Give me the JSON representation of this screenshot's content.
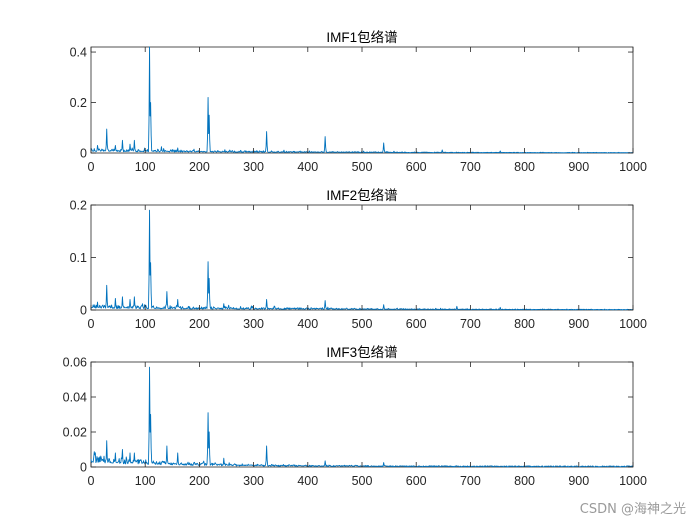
{
  "figure": {
    "watermark": "CSDN @海神之光"
  },
  "style": {
    "line_color": "#0072BD"
  },
  "chart_data": [
    {
      "type": "line",
      "title": "IMF1包络谱",
      "xlabel": "",
      "ylabel": "",
      "xlim": [
        0,
        1000
      ],
      "ylim": [
        0,
        0.42
      ],
      "xticks": [
        0,
        100,
        200,
        300,
        400,
        500,
        600,
        700,
        800,
        900,
        1000
      ],
      "yticks": [
        0,
        0.2,
        0.4
      ],
      "ytick_labels": [
        "0",
        "0.2",
        "0.4"
      ],
      "grid": false,
      "baseline": 0.006,
      "noise": 0.012,
      "decay": 330,
      "peaks": [
        [
          29,
          0.095
        ],
        [
          12,
          0.03
        ],
        [
          45,
          0.03
        ],
        [
          58,
          0.05
        ],
        [
          72,
          0.035
        ],
        [
          80,
          0.05
        ],
        [
          108,
          0.42
        ],
        [
          110,
          0.2
        ],
        [
          130,
          0.025
        ],
        [
          160,
          0.02
        ],
        [
          190,
          0.015
        ],
        [
          216,
          0.22
        ],
        [
          218,
          0.15
        ],
        [
          324,
          0.085
        ],
        [
          432,
          0.065
        ],
        [
          540,
          0.04
        ],
        [
          648,
          0.012
        ],
        [
          755,
          0.008
        ]
      ]
    },
    {
      "type": "line",
      "title": "IMF2包络谱",
      "xlabel": "",
      "ylabel": "",
      "xlim": [
        0,
        1000
      ],
      "ylim": [
        0,
        0.2
      ],
      "xticks": [
        0,
        100,
        200,
        300,
        400,
        500,
        600,
        700,
        800,
        900,
        1000
      ],
      "yticks": [
        0,
        0.1,
        0.2
      ],
      "ytick_labels": [
        "0",
        "0.1",
        "0.2"
      ],
      "grid": false,
      "baseline": 0.003,
      "noise": 0.007,
      "decay": 380,
      "peaks": [
        [
          12,
          0.015
        ],
        [
          29,
          0.047
        ],
        [
          45,
          0.022
        ],
        [
          58,
          0.025
        ],
        [
          72,
          0.02
        ],
        [
          80,
          0.025
        ],
        [
          108,
          0.19
        ],
        [
          110,
          0.09
        ],
        [
          140,
          0.035
        ],
        [
          160,
          0.02
        ],
        [
          216,
          0.092
        ],
        [
          218,
          0.06
        ],
        [
          245,
          0.012
        ],
        [
          324,
          0.02
        ],
        [
          432,
          0.018
        ],
        [
          540,
          0.01
        ],
        [
          675,
          0.007
        ],
        [
          755,
          0.005
        ]
      ]
    },
    {
      "type": "line",
      "title": "IMF3包络谱",
      "xlabel": "",
      "ylabel": "",
      "xlim": [
        0,
        1000
      ],
      "ylim": [
        0,
        0.06
      ],
      "xticks": [
        0,
        100,
        200,
        300,
        400,
        500,
        600,
        700,
        800,
        900,
        1000
      ],
      "yticks": [
        0,
        0.02,
        0.04,
        0.06
      ],
      "ytick_labels": [
        "0",
        "0.02",
        "0.04",
        "0.06"
      ],
      "grid": false,
      "baseline": 0.0025,
      "noise": 0.0045,
      "decay": 170,
      "peaks": [
        [
          29,
          0.015
        ],
        [
          45,
          0.008
        ],
        [
          58,
          0.01
        ],
        [
          72,
          0.008
        ],
        [
          80,
          0.008
        ],
        [
          108,
          0.057
        ],
        [
          110,
          0.03
        ],
        [
          140,
          0.012
        ],
        [
          160,
          0.008
        ],
        [
          216,
          0.031
        ],
        [
          218,
          0.02
        ],
        [
          245,
          0.005
        ],
        [
          324,
          0.012
        ],
        [
          432,
          0.0035
        ],
        [
          540,
          0.0025
        ]
      ]
    }
  ]
}
